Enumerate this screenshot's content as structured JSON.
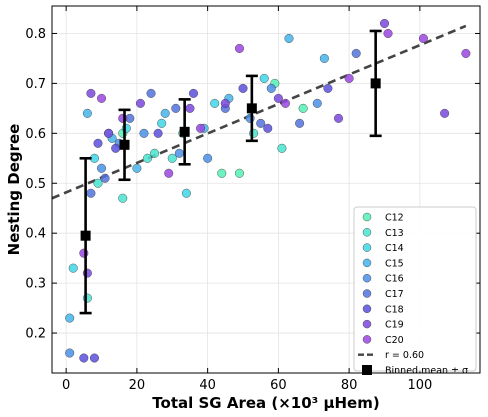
{
  "chart_data": {
    "type": "scatter",
    "title": "",
    "xlabel": "Total SG Area (×10³ μHem)",
    "ylabel": "Nesting Degree",
    "xlim": [
      -4,
      117
    ],
    "ylim": [
      0.12,
      0.855
    ],
    "xticks": [
      0,
      20,
      40,
      60,
      80,
      100
    ],
    "yticks": [
      0.2,
      0.3,
      0.4,
      0.5,
      0.6,
      0.7,
      0.8
    ],
    "grid": true,
    "legend_position": "lower-right",
    "series": [
      {
        "name": "C12",
        "color": "#55f0b5",
        "points": [
          [
            16,
            0.6
          ],
          [
            33,
            0.6
          ],
          [
            44,
            0.52
          ],
          [
            49,
            0.52
          ],
          [
            59,
            0.7
          ],
          [
            67,
            0.65
          ]
        ]
      },
      {
        "name": "C13",
        "color": "#48e3d0",
        "points": [
          [
            6,
            0.27
          ],
          [
            9,
            0.5
          ],
          [
            16,
            0.47
          ],
          [
            23,
            0.55
          ],
          [
            25,
            0.56
          ],
          [
            30,
            0.55
          ],
          [
            53,
            0.6
          ],
          [
            61,
            0.57
          ]
        ]
      },
      {
        "name": "C14",
        "color": "#3fd6e6",
        "points": [
          [
            2,
            0.33
          ],
          [
            8,
            0.55
          ],
          [
            12,
            0.6
          ],
          [
            17,
            0.61
          ],
          [
            27,
            0.62
          ],
          [
            34,
            0.48
          ],
          [
            42,
            0.66
          ],
          [
            56,
            0.71
          ]
        ]
      },
      {
        "name": "C15",
        "color": "#44b4ea",
        "points": [
          [
            1,
            0.23
          ],
          [
            6,
            0.64
          ],
          [
            13,
            0.59
          ],
          [
            20,
            0.53
          ],
          [
            28,
            0.64
          ],
          [
            39,
            0.61
          ],
          [
            46,
            0.67
          ],
          [
            63,
            0.79
          ],
          [
            73,
            0.75
          ]
        ]
      },
      {
        "name": "C16",
        "color": "#4a8fe6",
        "points": [
          [
            1,
            0.16
          ],
          [
            10,
            0.53
          ],
          [
            15,
            0.58
          ],
          [
            22,
            0.6
          ],
          [
            32,
            0.56
          ],
          [
            40,
            0.55
          ],
          [
            52,
            0.63
          ],
          [
            58,
            0.69
          ],
          [
            71,
            0.66
          ]
        ]
      },
      {
        "name": "C17",
        "color": "#5272dd",
        "points": [
          [
            7,
            0.48
          ],
          [
            11,
            0.51
          ],
          [
            18,
            0.63
          ],
          [
            24,
            0.68
          ],
          [
            31,
            0.65
          ],
          [
            45,
            0.65
          ],
          [
            55,
            0.62
          ],
          [
            66,
            0.62
          ],
          [
            82,
            0.76
          ]
        ]
      },
      {
        "name": "C18",
        "color": "#5a4fda",
        "points": [
          [
            5,
            0.15
          ],
          [
            8,
            0.15
          ],
          [
            9,
            0.58
          ],
          [
            14,
            0.57
          ],
          [
            26,
            0.6
          ],
          [
            36,
            0.68
          ],
          [
            50,
            0.69
          ],
          [
            57,
            0.61
          ],
          [
            74,
            0.69
          ]
        ]
      },
      {
        "name": "C19",
        "color": "#7a48dd",
        "points": [
          [
            6,
            0.32
          ],
          [
            7,
            0.68
          ],
          [
            12,
            0.6
          ],
          [
            21,
            0.66
          ],
          [
            35,
            0.65
          ],
          [
            45,
            0.66
          ],
          [
            60,
            0.67
          ],
          [
            77,
            0.63
          ],
          [
            90,
            0.82
          ],
          [
            107,
            0.64
          ]
        ]
      },
      {
        "name": "C20",
        "color": "#9a45e0",
        "points": [
          [
            5,
            0.36
          ],
          [
            10,
            0.67
          ],
          [
            16,
            0.63
          ],
          [
            29,
            0.52
          ],
          [
            38,
            0.61
          ],
          [
            49,
            0.77
          ],
          [
            62,
            0.66
          ],
          [
            80,
            0.71
          ],
          [
            91,
            0.8
          ],
          [
            101,
            0.79
          ],
          [
            113,
            0.76
          ]
        ]
      }
    ],
    "trend_line": {
      "label": "r = 0.60",
      "x": [
        -4,
        113
      ],
      "y": [
        0.47,
        0.815
      ]
    },
    "binned_means": {
      "label": "Binned mean ± σ",
      "x": [
        5.5,
        16.5,
        33.5,
        52.5,
        87.5
      ],
      "y": [
        0.395,
        0.577,
        0.603,
        0.65,
        0.7
      ],
      "err": [
        0.155,
        0.07,
        0.065,
        0.065,
        0.105
      ]
    }
  }
}
